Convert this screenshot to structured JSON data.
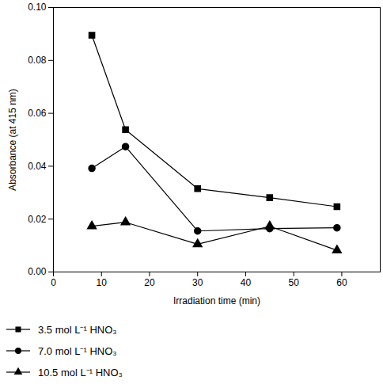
{
  "chart_data": {
    "type": "line",
    "x_label": "Irradiation time (min)",
    "y_label": "Absorbance (at 415 nm)",
    "x": [
      8,
      15,
      30,
      45,
      59
    ],
    "series": [
      {
        "name": "3.5 mol L⁻¹ HNO₃",
        "color": "#000000",
        "marker": "square",
        "values": [
          0.0895,
          0.0538,
          0.0315,
          0.0281,
          0.0247
        ]
      },
      {
        "name": "7.0 mol L⁻¹ HNO₃",
        "color": "#000000",
        "marker": "circle",
        "values": [
          0.0392,
          0.0474,
          0.0155,
          0.0164,
          0.0167
        ]
      },
      {
        "name": "10.5 mol L⁻¹ HNO₃",
        "color": "#000000",
        "marker": "triangle",
        "values": [
          0.0173,
          0.0188,
          0.0105,
          0.0173,
          0.0082
        ]
      }
    ],
    "xlim": [
      0,
      68
    ],
    "xticks": [
      0,
      10,
      20,
      30,
      40,
      50,
      60
    ],
    "ylim": [
      0,
      0.1
    ],
    "yticks": [
      {
        "value": 0,
        "label": "0.00"
      },
      0.02,
      0.04,
      0.06,
      0.08,
      {
        "value": 0.1,
        "label": "0.10"
      }
    ],
    "grid": false,
    "legend": "bottom"
  }
}
